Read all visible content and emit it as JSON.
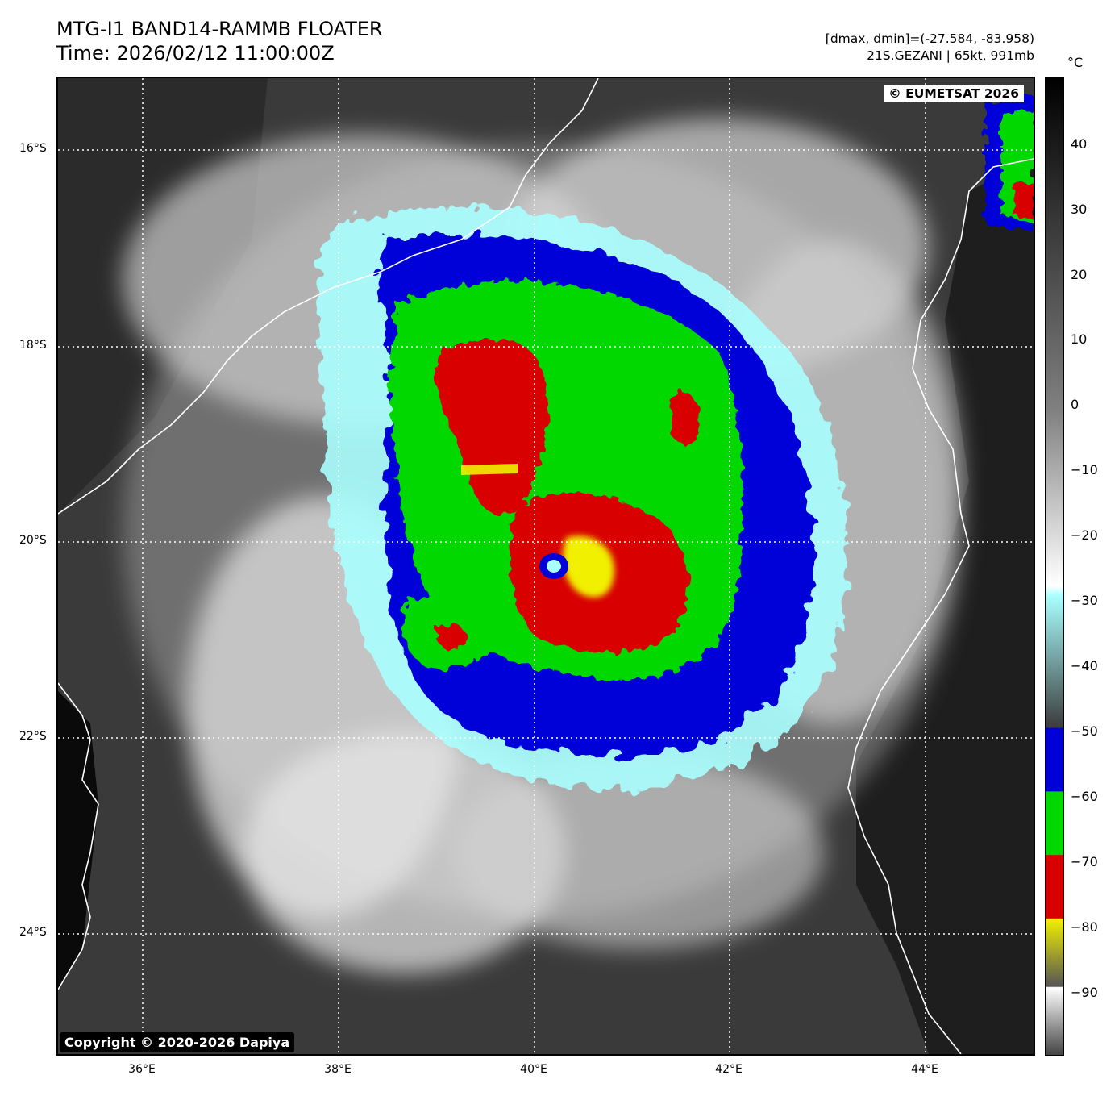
{
  "header": {
    "title": "MTG-I1 BAND14-RAMMB FLOATER",
    "time": "Time: 2026/02/12 11:00:00Z",
    "range": "[dmax, dmin]=(-27.584, -83.958)",
    "storm": "21S.GEZANI | 65kt, 991mb"
  },
  "map": {
    "lat_labels": [
      "16°S",
      "18°S",
      "20°S",
      "22°S",
      "24°S"
    ],
    "lon_labels": [
      "36°E",
      "38°E",
      "40°E",
      "42°E",
      "44°E"
    ],
    "eumetsat_credit": "© EUMETSAT 2026",
    "dapiya_credit": "Copyright © 2020-2026 Dapiya"
  },
  "colorbar": {
    "unit": "°C",
    "tick_labels": [
      "40",
      "30",
      "20",
      "10",
      "0",
      "−10",
      "−20",
      "−30",
      "−40",
      "−50",
      "−60",
      "−70",
      "−80",
      "−90"
    ],
    "colors": {
      "warm": "#000000",
      "gray_mid": "#808080",
      "white": "#ffffff",
      "cyan": "#aaffff",
      "dark_gray": "#3c3c3c",
      "blue": "#0000d8",
      "green": "#00d800",
      "red": "#d80000",
      "yellow": "#f0f000"
    }
  }
}
